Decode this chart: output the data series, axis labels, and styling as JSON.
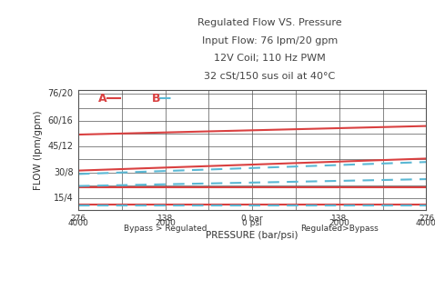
{
  "title_lines": [
    "Regulated Flow VS. Pressure",
    "Input Flow: 76 lpm/20 gpm",
    "12V Coil; 110 Hz PWM",
    "32 cSt/150 sus oil at 40°C"
  ],
  "xlabel_top": "PRESSURE (bar/psi)",
  "ylabel": "FLOW (lpm/gpm)",
  "x_ticks": [
    -276,
    -138,
    0,
    138,
    276
  ],
  "x_tick_labels_bar": [
    "276",
    "138",
    "0 bar",
    "138",
    "276"
  ],
  "x_tick_labels_psi": [
    "4000",
    "2000",
    "0 psi",
    "2000",
    "4000"
  ],
  "x_tick_labels_desc": [
    "",
    "Bypass > Regulated",
    "",
    "Regulated>Bypass",
    ""
  ],
  "y_ticks": [
    10,
    15,
    22.5,
    30,
    37.5,
    45,
    52.5,
    60,
    67.5,
    76
  ],
  "y_tick_labels": [
    "",
    "15/4",
    "",
    "30/8",
    "",
    "45/12",
    "",
    "60/16",
    "",
    "76/20"
  ],
  "xlim": [
    -276,
    276
  ],
  "ylim": [
    8,
    78
  ],
  "background_color": "#ffffff",
  "grid_color": "#555555",
  "red_color": "#d94040",
  "blue_color": "#5bb8d4",
  "red_solid_lines": [
    {
      "x": [
        -276,
        276
      ],
      "y": [
        52,
        57
      ]
    },
    {
      "x": [
        -276,
        276
      ],
      "y": [
        31,
        38
      ]
    },
    {
      "x": [
        -276,
        276
      ],
      "y": [
        21,
        21
      ]
    },
    {
      "x": [
        -276,
        276
      ],
      "y": [
        11,
        11
      ]
    }
  ],
  "blue_dashed_lines": [
    {
      "x": [
        -276,
        276
      ],
      "y": [
        29,
        36
      ]
    },
    {
      "x": [
        -276,
        276
      ],
      "y": [
        22,
        26
      ]
    },
    {
      "x": [
        -276,
        276
      ],
      "y": [
        10.5,
        10.5
      ]
    }
  ]
}
